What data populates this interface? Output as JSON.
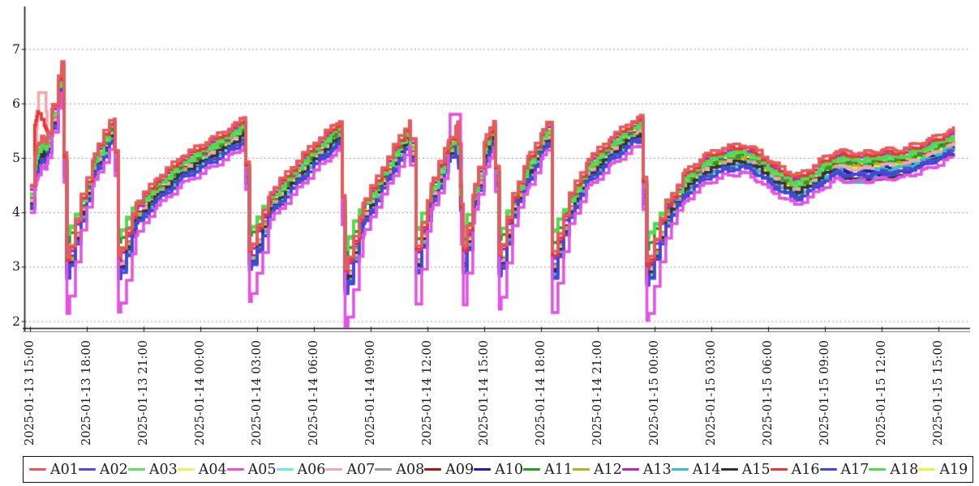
{
  "page": {
    "background": "#ffffff"
  },
  "chart_data": {
    "type": "line",
    "title": "",
    "xlabel": "",
    "ylabel": "",
    "grid": "horizontal-dotted",
    "legend_position": "bottom",
    "x_axis": {
      "start": "2025-01-13 15:00",
      "end": "2025-01-15 15:00",
      "tick_interval_hours": 3,
      "tick_labels": [
        "2025-01-13 15:00",
        "2025-01-13 18:00",
        "2025-01-13 21:00",
        "2025-01-14 00:00",
        "2025-01-14 03:00",
        "2025-01-14 06:00",
        "2025-01-14 09:00",
        "2025-01-14 12:00",
        "2025-01-14 15:00",
        "2025-01-14 18:00",
        "2025-01-14 21:00",
        "2025-01-15 00:00",
        "2025-01-15 03:00",
        "2025-01-15 06:00",
        "2025-01-15 09:00",
        "2025-01-15 12:00",
        "2025-01-15 15:00"
      ],
      "data_end_hours": 48.8
    },
    "y_axis": {
      "ticks": [
        7,
        6,
        5,
        4,
        3,
        2
      ],
      "min": 1.85,
      "max": 7.8
    },
    "ylim": [
      1.85,
      7.8
    ],
    "sample_step_hours": 0.3,
    "wiggle_amplitude": 0.035,
    "base_curve_hours_value": [
      [
        0,
        4.25
      ],
      [
        0.35,
        4.9
      ],
      [
        0.6,
        5.15
      ],
      [
        0.85,
        5.05
      ],
      [
        1.15,
        5.65
      ],
      [
        1.67,
        6.5
      ],
      [
        1.95,
        2.95
      ],
      [
        2.7,
        4.05
      ],
      [
        3.4,
        4.85
      ],
      [
        4.2,
        5.45
      ],
      [
        4.45,
        5.5
      ],
      [
        4.67,
        2.95
      ],
      [
        5.6,
        3.95
      ],
      [
        6.7,
        4.4
      ],
      [
        8,
        4.8
      ],
      [
        9.5,
        5.1
      ],
      [
        10.7,
        5.35
      ],
      [
        11.3,
        5.5
      ],
      [
        11.6,
        3.1
      ],
      [
        12.7,
        4.15
      ],
      [
        13.8,
        4.6
      ],
      [
        15,
        5.05
      ],
      [
        16,
        5.35
      ],
      [
        16.35,
        5.45
      ],
      [
        16.65,
        2.7
      ],
      [
        17.6,
        3.95
      ],
      [
        18.6,
        4.6
      ],
      [
        19.5,
        5.15
      ],
      [
        20.05,
        5.45
      ],
      [
        20.4,
        3.1
      ],
      [
        21.2,
        4.3
      ],
      [
        22.1,
        5.1
      ],
      [
        22.6,
        5.4
      ],
      [
        22.9,
        3.1
      ],
      [
        23.5,
        4.3
      ],
      [
        24.1,
        5.15
      ],
      [
        24.5,
        5.45
      ],
      [
        24.8,
        3.0
      ],
      [
        25.5,
        4.1
      ],
      [
        26.3,
        4.75
      ],
      [
        27.1,
        5.3
      ],
      [
        27.3,
        5.4
      ],
      [
        27.6,
        3.0
      ],
      [
        28.5,
        4.1
      ],
      [
        29.5,
        4.75
      ],
      [
        30.7,
        5.15
      ],
      [
        31.8,
        5.45
      ],
      [
        32.25,
        5.5
      ],
      [
        32.6,
        2.85
      ],
      [
        33.6,
        3.95
      ],
      [
        34.6,
        4.5
      ],
      [
        35.6,
        4.8
      ],
      [
        36.6,
        4.95
      ],
      [
        37.6,
        5.0
      ],
      [
        38.3,
        4.9
      ],
      [
        39.2,
        4.65
      ],
      [
        40.4,
        4.42
      ],
      [
        41.1,
        4.55
      ],
      [
        41.9,
        4.75
      ],
      [
        42.6,
        4.88
      ],
      [
        43.4,
        4.85
      ],
      [
        44.2,
        4.85
      ],
      [
        45,
        4.9
      ],
      [
        45.8,
        4.9
      ],
      [
        46.5,
        4.97
      ],
      [
        47.2,
        5.05
      ],
      [
        47.9,
        5.15
      ],
      [
        48.5,
        5.25
      ],
      [
        48.8,
        5.3
      ]
    ],
    "series": [
      {
        "name": "A01",
        "color": "#e25d5d",
        "offset": 0.25,
        "drop_factor": 1,
        "z": 11
      },
      {
        "name": "A02",
        "color": "#4d4dd4",
        "offset": -0.16,
        "drop_factor": 1,
        "z": 7
      },
      {
        "name": "A03",
        "color": "#5fdf5f",
        "offset": 0.1,
        "drop_factor": 6.5,
        "z": 8
      },
      {
        "name": "A04",
        "color": "#efef62",
        "offset": -0.02,
        "drop_factor": 1,
        "z": 2
      },
      {
        "name": "A05",
        "color": "#e253e2",
        "offset": -0.28,
        "drop_factor": 2.9,
        "z": 9,
        "overrides": [
          [
            [
              22.1,
              5.28
            ],
            [
              22.2,
              5.8
            ],
            [
              22.65,
              5.8
            ],
            [
              22.75,
              5.25
            ]
          ]
        ]
      },
      {
        "name": "A06",
        "color": "#74e8e8",
        "offset": -0.06,
        "drop_factor": 1,
        "z": 1
      },
      {
        "name": "A07",
        "color": "#f0a8ae",
        "offset": -0.04,
        "drop_factor": 1,
        "z": 5,
        "overrides": [
          [
            [
              0.35,
              5.55
            ],
            [
              0.45,
              6.2
            ],
            [
              0.8,
              6.2
            ],
            [
              0.9,
              5.5
            ]
          ]
        ]
      },
      {
        "name": "A08",
        "color": "#9b9b9b",
        "offset": -0.08,
        "drop_factor": 1,
        "z": 1
      },
      {
        "name": "A09",
        "color": "#a31717",
        "offset": 0.03,
        "drop_factor": 1,
        "z": 3
      },
      {
        "name": "A10",
        "color": "#1d1d9e",
        "offset": -0.12,
        "drop_factor": 1,
        "z": 4,
        "overrides": [
          [
            [
              44.4,
              4.88
            ],
            [
              44.55,
              4.68
            ],
            [
              45.1,
              4.68
            ],
            [
              45.25,
              4.88
            ]
          ]
        ]
      },
      {
        "name": "A11",
        "color": "#21a021",
        "offset": 0.06,
        "drop_factor": 8,
        "z": 4
      },
      {
        "name": "A12",
        "color": "#b2b21f",
        "offset": 0.01,
        "drop_factor": 1,
        "z": 3
      },
      {
        "name": "A13",
        "color": "#bc25bc",
        "offset": 0.14,
        "drop_factor": 1,
        "z": 5
      },
      {
        "name": "A14",
        "color": "#3ac2c2",
        "offset": -0.1,
        "drop_factor": 1,
        "z": 6,
        "overrides": [
          [
            [
              42.8,
              4.78
            ],
            [
              43.0,
              4.55
            ],
            [
              44.5,
              4.55
            ],
            [
              44.7,
              4.8
            ]
          ]
        ]
      },
      {
        "name": "A15",
        "color": "#333333",
        "offset": -0.07,
        "drop_factor": 1,
        "z": 6,
        "overrides": [
          [
            [
              42.5,
              4.78
            ],
            [
              43.1,
              4.62
            ],
            [
              44.6,
              4.6
            ],
            [
              45.7,
              4.65
            ],
            [
              46.6,
              4.78
            ],
            [
              47.5,
              4.95
            ],
            [
              48.3,
              5.02
            ],
            [
              48.8,
              5.06
            ]
          ]
        ]
      },
      {
        "name": "A16",
        "color": "#e93636",
        "offset": 0.2,
        "drop_factor": 1,
        "z": 10,
        "overrides": [
          [
            [
              0.25,
              5.6
            ],
            [
              0.4,
              5.85
            ],
            [
              0.75,
              5.6
            ],
            [
              0.95,
              5.45
            ]
          ]
        ]
      },
      {
        "name": "A17",
        "color": "#4347d8",
        "offset": -0.18,
        "drop_factor": 1,
        "z": 7
      },
      {
        "name": "A18",
        "color": "#4cdc4c",
        "offset": 0.12,
        "drop_factor": 5.4,
        "z": 8
      },
      {
        "name": "A19",
        "color": "#efef4a",
        "offset": -0.01,
        "drop_factor": 1,
        "z": 2
      }
    ]
  }
}
